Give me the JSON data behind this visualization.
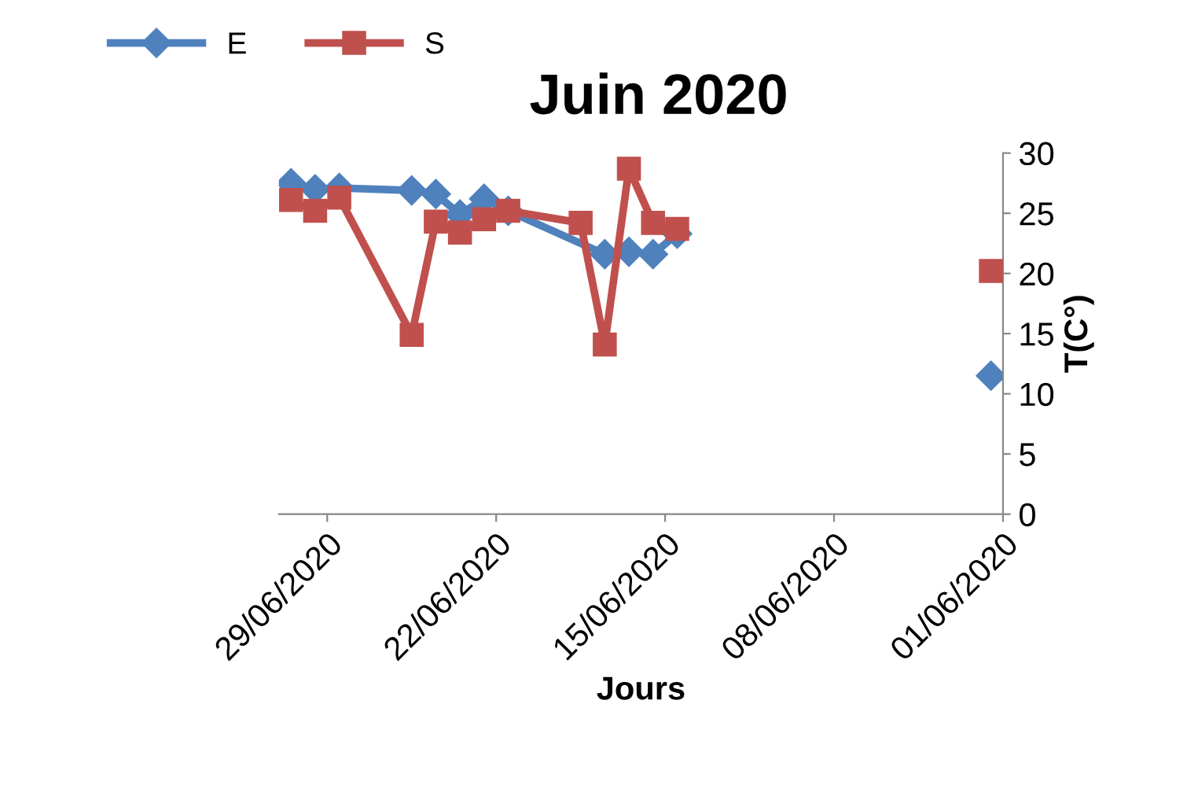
{
  "chart_data": {
    "type": "line",
    "title": "Juin 2020",
    "xlabel": "Jours",
    "ylabel": "T(C°)",
    "xlim": [
      "2020-07-01",
      "2020-06-01"
    ],
    "ylim": [
      0,
      30
    ],
    "yticks": [
      0,
      5,
      10,
      15,
      20,
      25,
      30
    ],
    "xticks": [
      {
        "value": "2020-06-29",
        "label": "29/06/2020"
      },
      {
        "value": "2020-06-22",
        "label": "22/06/2020"
      },
      {
        "value": "2020-06-15",
        "label": "15/06/2020"
      },
      {
        "value": "2020-06-08",
        "label": "08/06/2020"
      },
      {
        "value": "2020-06-01",
        "label": "01/06/2020"
      }
    ],
    "grid": false,
    "legend": "top left",
    "line_style": "solid",
    "series": [
      {
        "name": "E",
        "color": "#4f81bd",
        "marker": "diamond",
        "x": [
          "2020-06-30T12:00",
          "2020-06-29T12:00",
          "2020-06-28T12:00",
          "2020-06-25T12:00",
          "2020-06-24T12:00",
          "2020-06-23T12:00",
          "2020-06-22T12:00",
          "2020-06-21T12:00",
          "2020-06-17T12:00",
          "2020-06-16T12:00",
          "2020-06-15T12:00",
          "2020-06-14T12:00",
          "2020-06-13T12:00",
          "2020-06-01T12:00"
        ],
        "values": [
          27.5,
          27.0,
          27.1,
          26.9,
          26.6,
          24.9,
          26.2,
          25.2,
          21.6,
          21.8,
          21.6,
          23.3,
          null,
          11.5
        ]
      },
      {
        "name": "S",
        "color": "#c0504d",
        "marker": "square",
        "x": [
          "2020-06-30T12:00",
          "2020-06-29T12:00",
          "2020-06-28T12:00",
          "2020-06-25T12:00",
          "2020-06-24T12:00",
          "2020-06-23T12:00",
          "2020-06-22T12:00",
          "2020-06-21T12:00",
          "2020-06-18T12:00",
          "2020-06-17T12:00",
          "2020-06-16T12:00",
          "2020-06-15T12:00",
          "2020-06-14T12:00",
          "2020-06-13T12:00",
          "2020-06-01T12:00"
        ],
        "values": [
          26.1,
          25.2,
          26.3,
          14.9,
          24.3,
          23.4,
          24.5,
          25.2,
          24.2,
          14.1,
          28.7,
          24.2,
          23.7,
          null,
          20.2
        ]
      }
    ]
  }
}
